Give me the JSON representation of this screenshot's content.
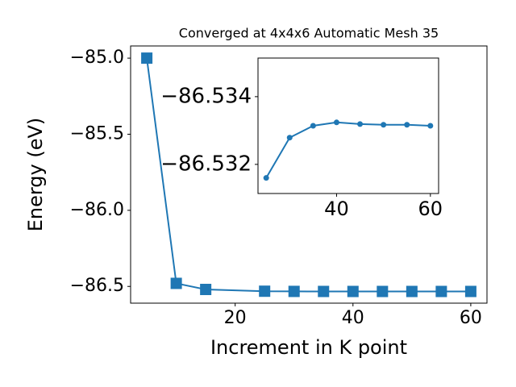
{
  "chart_data": [
    {
      "type": "line",
      "title": "Converged at 4x4x6 Automatic Mesh 35",
      "x_label": "Increment in K point",
      "y_label": "Energy (eV)",
      "x": [
        5,
        10,
        15,
        25,
        30,
        35,
        40,
        45,
        50,
        55,
        60
      ],
      "series": [
        {
          "color": "#1f77b4",
          "marker": "square",
          "values": [
            -85.0,
            -86.48,
            -86.52,
            -86.5316,
            -86.5328,
            -86.5331,
            -86.5332,
            -86.5332,
            -86.5332,
            -86.5332,
            -86.5331
          ]
        }
      ],
      "xlim": [
        2.25,
        62.75
      ],
      "xticks": [
        20,
        40,
        60
      ],
      "ylim": [
        -86.61,
        -84.92
      ],
      "yticks": [
        {
          "value": -85.0,
          "label": "−85.0"
        },
        {
          "value": -85.5,
          "label": "−85.5"
        },
        {
          "value": -86.0,
          "label": "−86.0"
        },
        {
          "value": -86.5,
          "label": "−86.5"
        }
      ]
    },
    {
      "type": "line",
      "x": [
        25,
        30,
        35,
        40,
        45,
        50,
        55,
        60
      ],
      "series": [
        {
          "color": "#1f77b4",
          "marker": "circle",
          "values": [
            -86.5316,
            -86.53279,
            -86.53314,
            -86.53324,
            -86.53319,
            -86.53317,
            -86.53317,
            -86.53314
          ]
        }
      ],
      "xlim": [
        23.25,
        61.75
      ],
      "xticks": [
        40,
        60
      ],
      "ylim": [
        -86.53114,
        -86.53514
      ],
      "yticks": [
        {
          "value": -86.534,
          "label": "−86.534"
        },
        {
          "value": -86.532,
          "label": "−86.532"
        }
      ]
    }
  ]
}
